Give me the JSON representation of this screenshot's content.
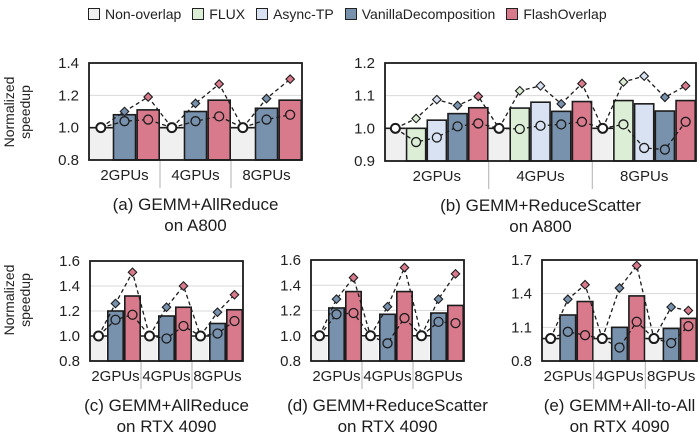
{
  "legend": [
    {
      "name": "Non-overlap",
      "color": "#f0f0f0"
    },
    {
      "name": "FLUX",
      "color": "#dcefd6"
    },
    {
      "name": "Async-TP",
      "color": "#d8e2f2"
    },
    {
      "name": "VanillaDecomposition",
      "color": "#7891ad"
    },
    {
      "name": "FlashOverlap",
      "color": "#d87a8c"
    }
  ],
  "chart_data": [
    {
      "id": "a",
      "type": "bar",
      "title": "(a) GEMM+AllReduce",
      "subtitle": "on A800",
      "ylabel": "Normalized speedup",
      "ylim": [
        0.8,
        1.4
      ],
      "yticks": [
        "0.8",
        "1.0",
        "1.2",
        "1.4"
      ],
      "ytick_values": [
        0.8,
        1.0,
        1.2,
        1.4
      ],
      "categories": [
        "2GPUs",
        "4GPUs",
        "8GPUs"
      ],
      "series": [
        {
          "name": "Non-overlap",
          "values": [
            1.0,
            1.0,
            1.0
          ]
        },
        {
          "name": "VanillaDecomposition",
          "values": [
            1.08,
            1.1,
            1.12
          ]
        },
        {
          "name": "FlashOverlap",
          "values": [
            1.11,
            1.17,
            1.17
          ]
        }
      ],
      "min_markers": [
        [
          1.0,
          1.04,
          1.05
        ],
        [
          1.0,
          1.04,
          1.07
        ],
        [
          1.0,
          1.05,
          1.08
        ]
      ],
      "max_markers": [
        [
          1.0,
          1.1,
          1.19
        ],
        [
          1.0,
          1.15,
          1.27
        ],
        [
          1.0,
          1.18,
          1.3
        ]
      ]
    },
    {
      "id": "b",
      "type": "bar",
      "title": "(b) GEMM+ReduceScatter",
      "subtitle": "on A800",
      "ylabel": "",
      "ylim": [
        0.9,
        1.2
      ],
      "yticks": [
        "0.9",
        "1.0",
        "1.1",
        "1.2"
      ],
      "ytick_values": [
        0.9,
        1.0,
        1.1,
        1.2
      ],
      "categories": [
        "2GPUs",
        "4GPUs",
        "8GPUs"
      ],
      "series": [
        {
          "name": "Non-overlap",
          "values": [
            1.0,
            1.0,
            1.0
          ]
        },
        {
          "name": "FLUX",
          "values": [
            1.0,
            1.062,
            1.085
          ]
        },
        {
          "name": "Async-TP",
          "values": [
            1.025,
            1.08,
            1.075
          ]
        },
        {
          "name": "VanillaDecomposition",
          "values": [
            1.045,
            1.052,
            1.053
          ]
        },
        {
          "name": "FlashOverlap",
          "values": [
            1.063,
            1.082,
            1.085
          ]
        }
      ],
      "min_markers": [
        [
          1.0,
          0.958,
          0.972,
          1.006,
          1.015
        ],
        [
          1.0,
          0.998,
          1.008,
          1.012,
          1.02
        ],
        [
          1.0,
          1.012,
          0.94,
          0.935,
          1.02
        ]
      ],
      "max_markers": [
        [
          1.0,
          1.03,
          1.088,
          1.07,
          1.098
        ],
        [
          1.0,
          1.115,
          1.13,
          1.075,
          1.137
        ],
        [
          1.0,
          1.142,
          1.16,
          1.095,
          1.13
        ]
      ]
    },
    {
      "id": "c",
      "type": "bar",
      "title": "(c) GEMM+AllReduce",
      "subtitle": "on RTX 4090",
      "ylabel": "Normalized speedup",
      "ylim": [
        0.8,
        1.6
      ],
      "yticks": [
        "0.8",
        "1.0",
        "1.2",
        "1.4",
        "1.6"
      ],
      "ytick_values": [
        0.8,
        1.0,
        1.2,
        1.4,
        1.6
      ],
      "categories": [
        "2GPUs",
        "4GPUs",
        "8GPUs"
      ],
      "series": [
        {
          "name": "Non-overlap",
          "values": [
            1.0,
            1.0,
            1.0
          ]
        },
        {
          "name": "VanillaDecomposition",
          "values": [
            1.2,
            1.16,
            1.1
          ]
        },
        {
          "name": "FlashOverlap",
          "values": [
            1.32,
            1.23,
            1.21
          ]
        }
      ],
      "min_markers": [
        [
          1.0,
          1.13,
          1.17
        ],
        [
          1.0,
          0.98,
          1.08
        ],
        [
          1.0,
          1.02,
          1.12
        ]
      ],
      "max_markers": [
        [
          1.0,
          1.26,
          1.51
        ],
        [
          1.0,
          1.23,
          1.4
        ],
        [
          1.0,
          1.19,
          1.33
        ]
      ]
    },
    {
      "id": "d",
      "type": "bar",
      "title": "(d) GEMM+ReduceScatter",
      "subtitle": "on RTX 4090",
      "ylabel": "",
      "ylim": [
        0.8,
        1.6
      ],
      "yticks": [
        "0.8",
        "1.0",
        "1.2",
        "1.4",
        "1.6"
      ],
      "ytick_values": [
        0.8,
        1.0,
        1.2,
        1.4,
        1.6
      ],
      "categories": [
        "2GPUs",
        "4GPUs",
        "8GPUs"
      ],
      "series": [
        {
          "name": "Non-overlap",
          "values": [
            1.0,
            1.0,
            1.0
          ]
        },
        {
          "name": "VanillaDecomposition",
          "values": [
            1.22,
            1.17,
            1.18
          ]
        },
        {
          "name": "FlashOverlap",
          "values": [
            1.35,
            1.35,
            1.24
          ]
        }
      ],
      "min_markers": [
        [
          1.0,
          1.17,
          1.18
        ],
        [
          1.0,
          0.94,
          1.14
        ],
        [
          1.0,
          1.11,
          1.1
        ]
      ],
      "max_markers": [
        [
          1.0,
          1.29,
          1.46
        ],
        [
          1.0,
          1.23,
          1.54
        ],
        [
          1.0,
          1.29,
          1.49
        ]
      ]
    },
    {
      "id": "e",
      "type": "bar",
      "title": "(e) GEMM+All-to-All",
      "subtitle": "on RTX 4090",
      "ylabel": "",
      "ylim": [
        0.8,
        1.7
      ],
      "yticks": [
        "0.8",
        "1.1",
        "1.4",
        "1.7"
      ],
      "ytick_values": [
        0.8,
        1.1,
        1.4,
        1.7
      ],
      "categories": [
        "2GPUs",
        "4GPUs",
        "8GPUs"
      ],
      "series": [
        {
          "name": "Non-overlap",
          "values": [
            1.0,
            1.0,
            1.0
          ]
        },
        {
          "name": "VanillaDecomposition",
          "values": [
            1.21,
            1.1,
            1.09
          ]
        },
        {
          "name": "FlashOverlap",
          "values": [
            1.33,
            1.38,
            1.18
          ]
        }
      ],
      "min_markers": [
        [
          1.0,
          1.06,
          1.03
        ],
        [
          1.0,
          0.92,
          1.15
        ],
        [
          1.0,
          0.96,
          1.11
        ]
      ],
      "max_markers": [
        [
          1.0,
          1.35,
          1.48
        ],
        [
          1.0,
          1.45,
          1.65
        ],
        [
          1.0,
          1.28,
          1.25
        ]
      ]
    }
  ]
}
